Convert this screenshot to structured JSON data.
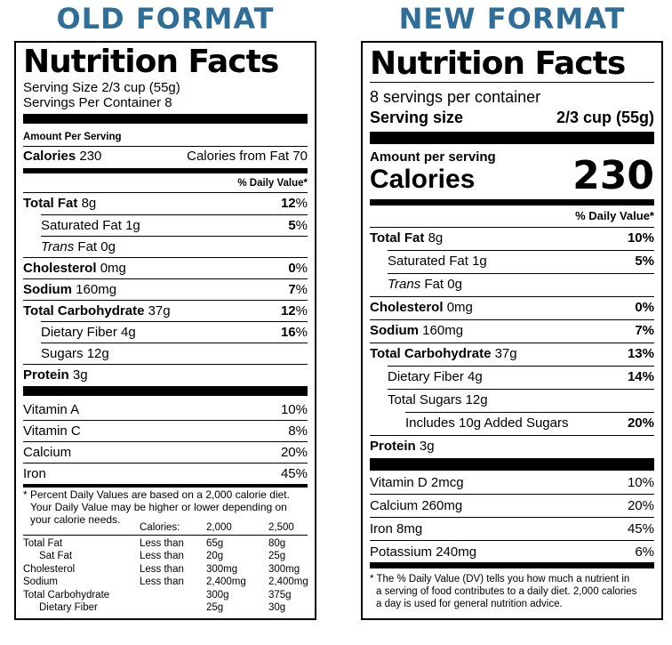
{
  "headings": {
    "old": "OLD FORMAT",
    "new": "NEW FORMAT"
  },
  "old_label": {
    "title": "Nutrition Facts",
    "serving_size": "Serving Size 2/3 cup (55g)",
    "servings_per_container": "Servings Per Container 8",
    "amount_per_serving": "Amount Per Serving",
    "calories_label": "Calories",
    "calories_value": "230",
    "calories_from_fat": "Calories from Fat 70",
    "dv_header": "% Daily Value*",
    "nutrients": [
      {
        "name": "Total Fat",
        "amount": "8g",
        "dv": "12",
        "pct": "%"
      },
      {
        "name": "Saturated Fat",
        "amount": "1g",
        "dv": "5",
        "pct": "%"
      },
      {
        "name": "Trans",
        "amount": "Fat 0g",
        "dv": "",
        "pct": ""
      },
      {
        "name": "Cholesterol",
        "amount": "0mg",
        "dv": "0",
        "pct": "%"
      },
      {
        "name": "Sodium",
        "amount": "160mg",
        "dv": "7",
        "pct": "%"
      },
      {
        "name": "Total Carbohydrate",
        "amount": "37g",
        "dv": "12",
        "pct": "%"
      },
      {
        "name": "Dietary Fiber",
        "amount": "4g",
        "dv": "16",
        "pct": "%"
      },
      {
        "name": "Sugars",
        "amount": "12g",
        "dv": "",
        "pct": ""
      },
      {
        "name": "Protein",
        "amount": "3g",
        "dv": "",
        "pct": ""
      }
    ],
    "vitamins": [
      {
        "name": "Vitamin A",
        "dv": "10%"
      },
      {
        "name": "Vitamin C",
        "dv": "8%"
      },
      {
        "name": "Calcium",
        "dv": "20%"
      },
      {
        "name": "Iron",
        "dv": "45%"
      }
    ],
    "footnote": [
      "* Percent Daily Values are based on a 2,000 calorie diet.",
      "Your Daily Value may be higher or lower depending on",
      "your calorie needs."
    ],
    "dv_table": {
      "header": [
        "Calories:",
        "2,000",
        "2,500"
      ],
      "rows": [
        [
          "Total Fat",
          "Less than",
          "65g",
          "80g"
        ],
        [
          "Sat Fat",
          "Less than",
          "20g",
          "25g"
        ],
        [
          "Cholesterol",
          "Less than",
          "300mg",
          "300mg"
        ],
        [
          "Sodium",
          "Less than",
          "2,400mg",
          "2,400mg"
        ],
        [
          "Total Carbohydrate",
          "",
          "300g",
          "375g"
        ],
        [
          "Dietary Fiber",
          "",
          "25g",
          "30g"
        ]
      ]
    }
  },
  "new_label": {
    "title": "Nutrition Facts",
    "servings_per_container": "8 servings per container",
    "serving_size_label": "Serving size",
    "serving_size_value": "2/3 cup (55g)",
    "amount_per_serving": "Amount per serving",
    "calories_label": "Calories",
    "calories_value": "230",
    "dv_header": "% Daily Value*",
    "nutrients": [
      {
        "name": "Total Fat",
        "amount": "8g",
        "dv": "10%"
      },
      {
        "name": "Saturated Fat",
        "amount": "1g",
        "dv": "5%"
      },
      {
        "name": "Trans",
        "amount": "Fat 0g",
        "dv": ""
      },
      {
        "name": "Cholesterol",
        "amount": "0mg",
        "dv": "0%"
      },
      {
        "name": "Sodium",
        "amount": "160mg",
        "dv": "7%"
      },
      {
        "name": "Total Carbohydrate",
        "amount": "37g",
        "dv": "13%"
      },
      {
        "name": "Dietary Fiber",
        "amount": "4g",
        "dv": "14%"
      },
      {
        "name": "Total Sugars",
        "amount": "12g",
        "dv": ""
      },
      {
        "name": "Includes 10g Added Sugars",
        "amount": "",
        "dv": "20%"
      },
      {
        "name": "Protein",
        "amount": "3g",
        "dv": ""
      }
    ],
    "vitamins": [
      {
        "name": "Vitamin D 2mcg",
        "dv": "10%"
      },
      {
        "name": "Calcium 260mg",
        "dv": "20%"
      },
      {
        "name": "Iron 8mg",
        "dv": "45%"
      },
      {
        "name": "Potassium 240mg",
        "dv": "6%"
      }
    ],
    "footnote": [
      "* The % Daily Value (DV) tells you how much a nutrient in",
      "a serving of food contributes to a daily diet. 2,000 calories",
      "a day is used for general nutrition advice."
    ]
  }
}
